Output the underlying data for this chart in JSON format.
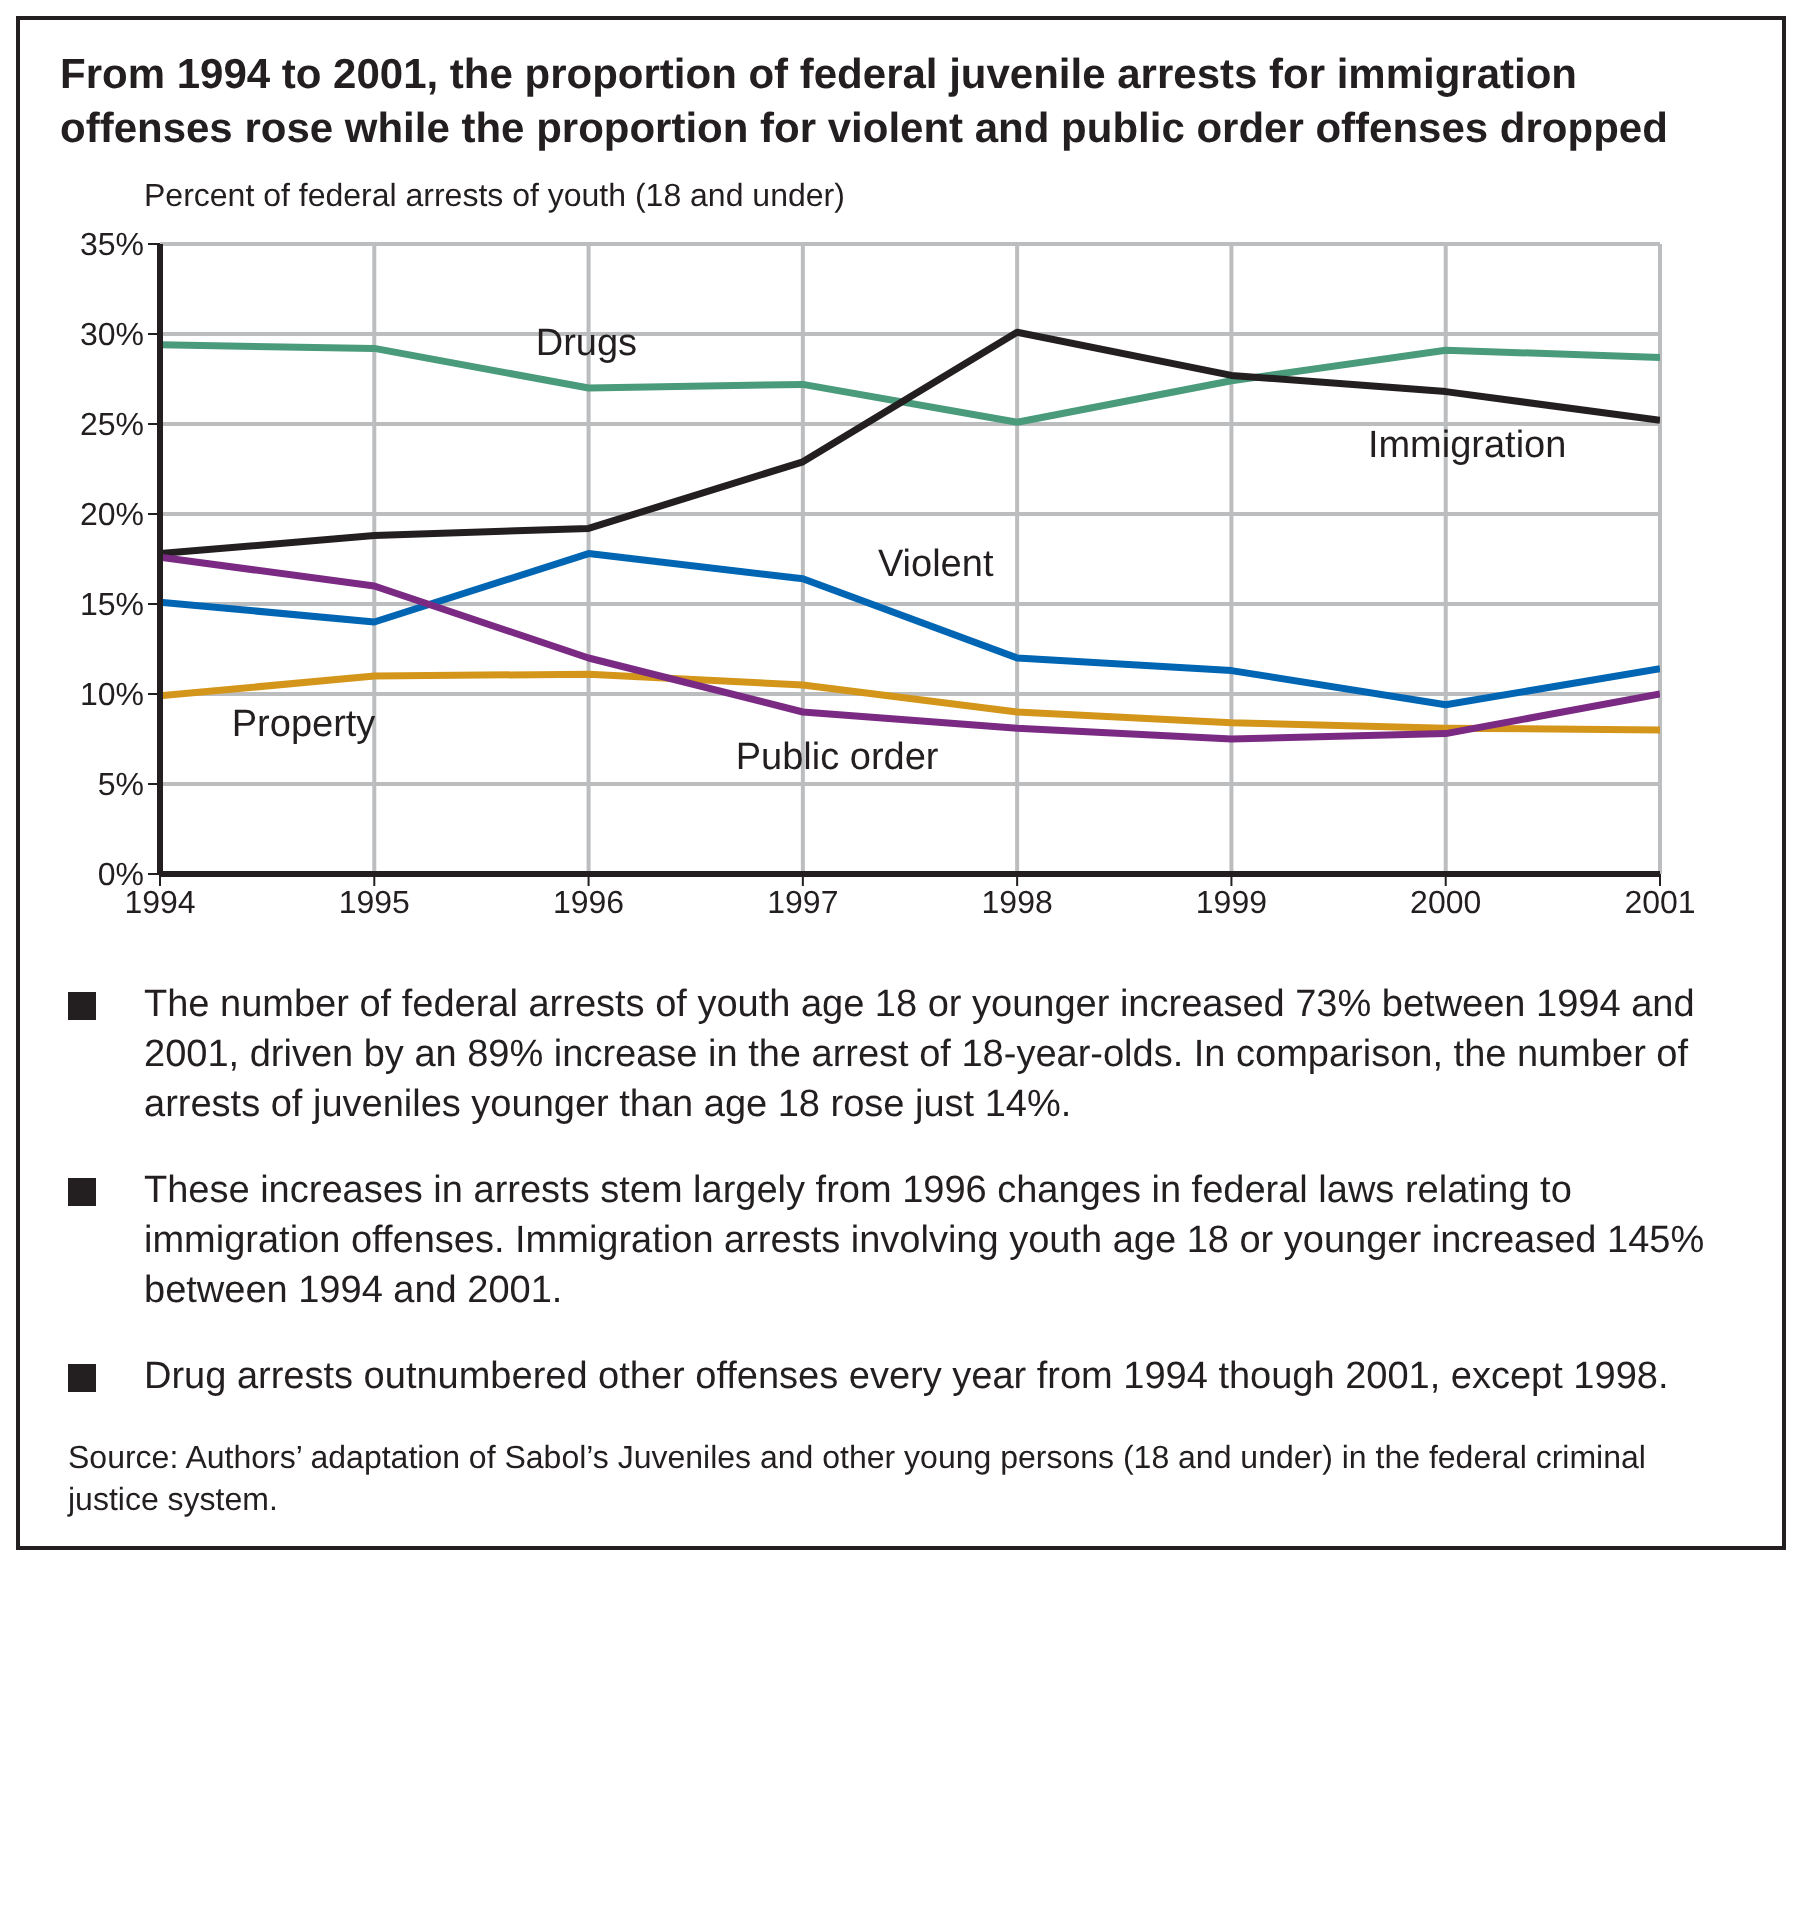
{
  "chart_data": {
    "type": "line",
    "title": "From 1994 to 2001, the proportion of federal juvenile arrests for immigration offenses rose while the proportion for violent and public order offenses dropped",
    "ylabel": "Percent of federal arrests of youth (18 and under)",
    "x": [
      1994,
      1995,
      1996,
      1997,
      1998,
      1999,
      2000,
      2001
    ],
    "series": [
      {
        "name": "Drugs",
        "color": "#4a9a7c",
        "values": [
          29.4,
          29.2,
          27.0,
          27.2,
          25.1,
          27.4,
          29.1,
          28.7
        ]
      },
      {
        "name": "Immigration",
        "color": "#231f20",
        "values": [
          17.8,
          18.8,
          19.2,
          22.9,
          30.1,
          27.7,
          26.8,
          25.2
        ]
      },
      {
        "name": "Violent",
        "color": "#0066b3",
        "values": [
          15.1,
          14.0,
          17.8,
          16.4,
          12.0,
          11.3,
          9.4,
          11.4
        ]
      },
      {
        "name": "Property",
        "color": "#d4961a",
        "values": [
          9.9,
          11.0,
          11.1,
          10.5,
          9.0,
          8.4,
          8.1,
          8.0
        ]
      },
      {
        "name": "Public order",
        "color": "#7b2a83",
        "values": [
          17.6,
          16.0,
          12.0,
          9.0,
          8.1,
          7.5,
          7.8,
          10.0
        ]
      }
    ],
    "xlim": [
      1994,
      2001
    ],
    "xticks": [
      1994,
      1995,
      1996,
      1997,
      1998,
      1999,
      2000,
      2001
    ],
    "ylim": [
      0,
      35
    ],
    "yticks": [
      {
        "value": 0,
        "label": "0%"
      },
      {
        "value": 5,
        "label": "5%"
      },
      {
        "value": 10,
        "label": "10%"
      },
      {
        "value": 15,
        "label": "15%"
      },
      {
        "value": 20,
        "label": "20%"
      },
      {
        "value": 25,
        "label": "25%"
      },
      {
        "value": 30,
        "label": "30%"
      },
      {
        "value": 35,
        "label": "35%"
      }
    ],
    "grid": true,
    "annotations": [
      "The number of federal arrests of youth age 18 or younger increased 73% between 1994 and 2001, driven by an 89% increase in the arrest of 18-year-olds. In comparison, the number of arrests of juveniles younger than age 18 rose just 14%.",
      "These increases in arrests stem largely from 1996 changes in federal laws relating to immigration offenses. Immigration arrests involving youth age 18 or younger increased 145% between 1994 and 2001.",
      "Drug arrests outnumbered other offenses every year from 1994 though 2001, except 1998.",
      "Source: Authors’ adaptation of Sabol’s Juveniles and other young persons (18 and under) in the federal criminal justice system."
    ]
  }
}
